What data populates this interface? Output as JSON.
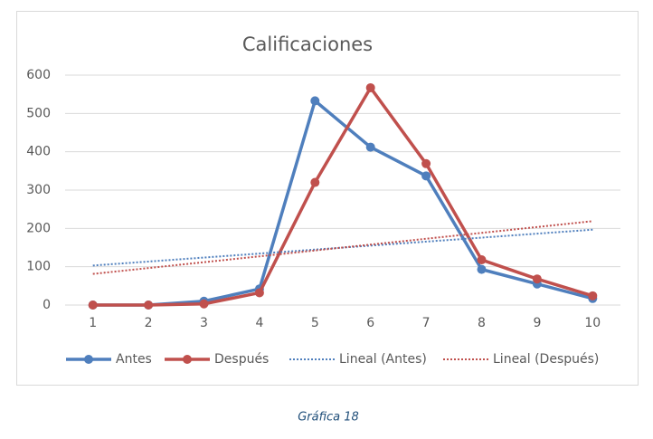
{
  "chart_data": {
    "type": "line",
    "title": "Calificaciones",
    "categories": [
      "1",
      "2",
      "3",
      "4",
      "5",
      "6",
      "7",
      "8",
      "9",
      "10"
    ],
    "series": [
      {
        "name": "Antes",
        "color": "#4f7fbd",
        "style": "solid",
        "markers": true,
        "values": [
          0,
          0,
          10,
          42,
          533,
          412,
          337,
          93,
          55,
          17
        ]
      },
      {
        "name": "Después",
        "color": "#c0504d",
        "style": "solid",
        "markers": true,
        "values": [
          0,
          0,
          3,
          32,
          320,
          567,
          369,
          118,
          68,
          24
        ]
      },
      {
        "name": "Lineal (Antes)",
        "color": "#4f7fbd",
        "style": "dotted",
        "markers": false,
        "values": [
          103.1,
          113.5,
          123.9,
          134.3,
          144.7,
          155.1,
          165.5,
          175.9,
          186.3,
          196.7
        ]
      },
      {
        "name": "Lineal (Después)",
        "color": "#c0504d",
        "style": "dotted",
        "markers": false,
        "values": [
          81.2,
          96.5,
          111.8,
          127.1,
          142.4,
          157.7,
          173.0,
          188.3,
          203.6,
          218.9
        ]
      }
    ],
    "ylim": [
      0,
      600
    ],
    "yticks": [
      0,
      100,
      200,
      300,
      400,
      500,
      600
    ],
    "grid": true,
    "legend": "bottom"
  },
  "caption": "Gráfica 18"
}
